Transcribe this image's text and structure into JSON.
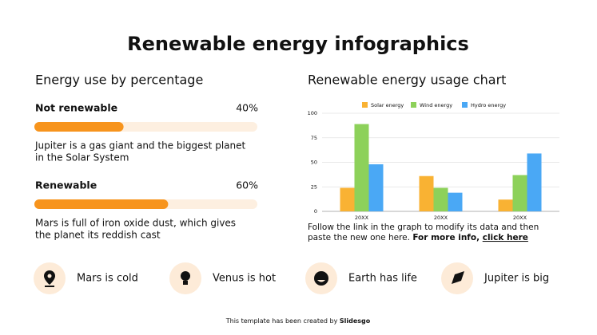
{
  "title": "Renewable energy infographics",
  "left": {
    "heading": "Energy use by percentage",
    "items": [
      {
        "label": "Not renewable",
        "value": 40,
        "value_label": "40%",
        "xlim": [
          0,
          100
        ],
        "color": "#f7941d",
        "track_color": "#fdefe0",
        "text": [
          "Jupiter is a gas giant and the biggest planet",
          "in the Solar System"
        ]
      },
      {
        "label": "Renewable",
        "value": 60,
        "value_label": "60%",
        "xlim": [
          0,
          100
        ],
        "color": "#f7941d",
        "track_color": "#fdefe0",
        "text": [
          "Mars is full of iron oxide dust, which gives",
          "the planet its reddish cast"
        ]
      }
    ]
  },
  "chart_data": {
    "type": "bar",
    "title": "Renewable energy usage chart",
    "categories": [
      "20XX",
      "20XX",
      "20XX"
    ],
    "series": [
      {
        "name": "Solar energy",
        "color": "#f9b233",
        "values": [
          24,
          36,
          12
        ]
      },
      {
        "name": "Wind energy",
        "color": "#8dd15a",
        "values": [
          89,
          24,
          37
        ]
      },
      {
        "name": "Hydro energy",
        "color": "#4aa8f5",
        "values": [
          48,
          19,
          59
        ]
      }
    ],
    "ylim": [
      0,
      100
    ],
    "yticks": [
      0,
      25,
      50,
      75,
      100
    ],
    "grid": true,
    "legend": "top"
  },
  "caption": {
    "line1": "Follow the link in the graph to modify its data and then",
    "line2_plain": "paste the new one here. ",
    "line2_bold": "For more info, ",
    "link": "click here"
  },
  "facts": [
    "Mars is cold",
    "Venus is hot",
    "Earth has life",
    "Jupiter is big"
  ],
  "footer": {
    "plain": "This template has been created by ",
    "bold": "Slidesgo"
  }
}
